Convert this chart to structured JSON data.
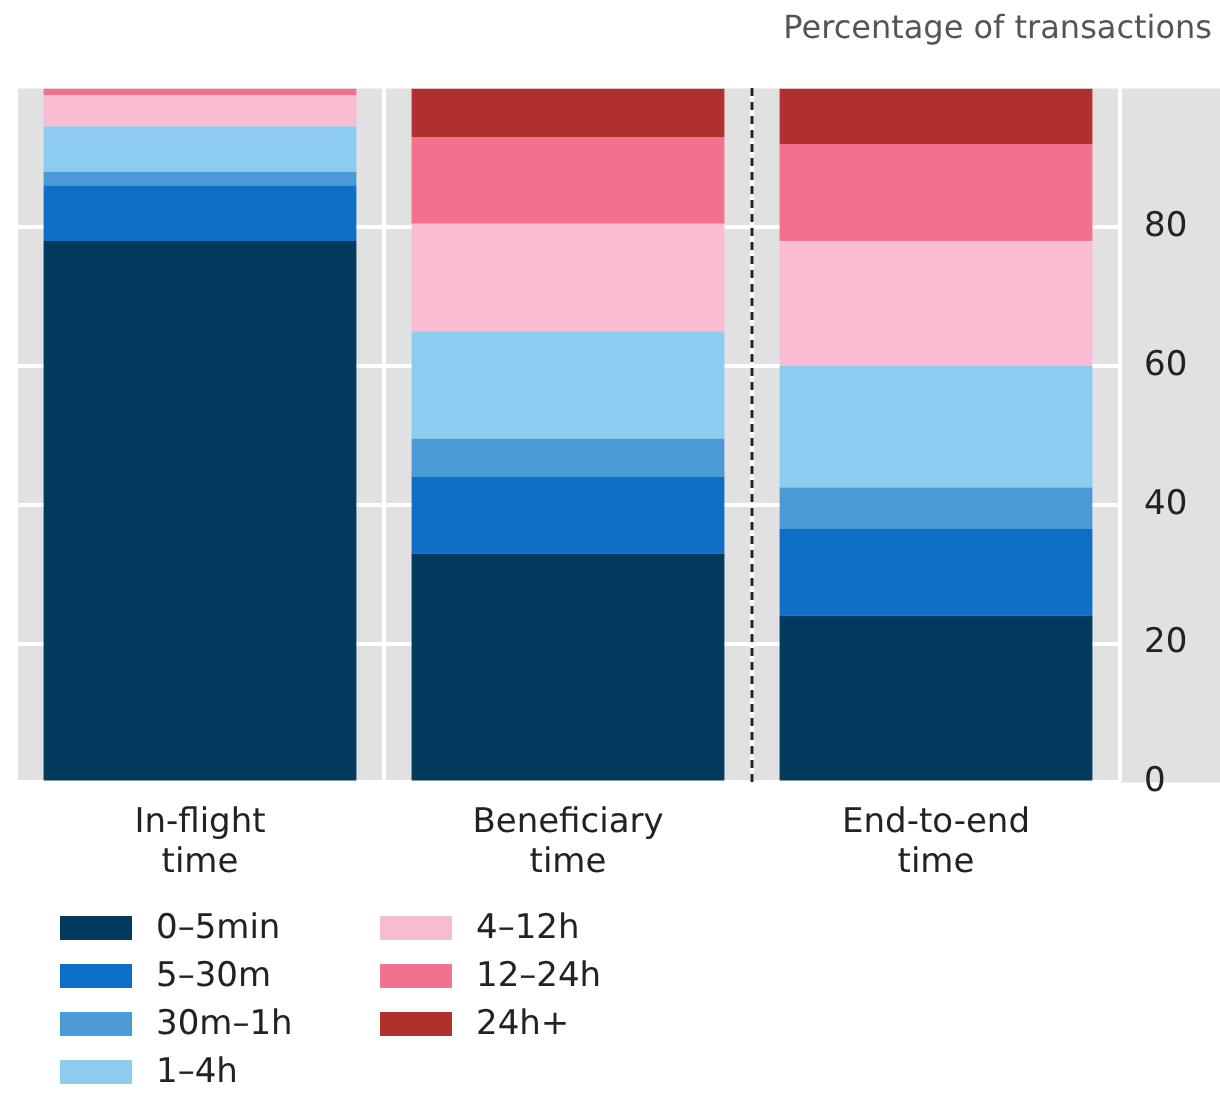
{
  "chart_data": {
    "type": "bar",
    "stacked": true,
    "ylabel": "Percentage of transactions",
    "categories": [
      "In-flight time",
      "Beneficiary time",
      "End-to-end time"
    ],
    "series": [
      {
        "name": "0–5min",
        "color": "#003a5d",
        "values": [
          78,
          33,
          24
        ]
      },
      {
        "name": "5–30m",
        "color": "#0f6fc6",
        "values": [
          8,
          11,
          12.5
        ]
      },
      {
        "name": "30m–1h",
        "color": "#4a9bd5",
        "values": [
          2,
          5.5,
          6
        ]
      },
      {
        "name": "1–4h",
        "color": "#8ecbf0",
        "values": [
          6.5,
          15.5,
          17.5
        ]
      },
      {
        "name": "4–12h",
        "color": "#f9bcd2",
        "values": [
          4.5,
          15.5,
          18
        ]
      },
      {
        "name": "12–24h",
        "color": "#f2718d",
        "values": [
          1,
          12.5,
          14
        ]
      },
      {
        "name": "24h+",
        "color": "#b0302f",
        "values": [
          0,
          7,
          8
        ]
      }
    ],
    "ylim": [
      0,
      100
    ],
    "yticks": [
      0,
      20,
      40,
      60,
      80
    ],
    "grid": true,
    "legend": "bottom left"
  }
}
